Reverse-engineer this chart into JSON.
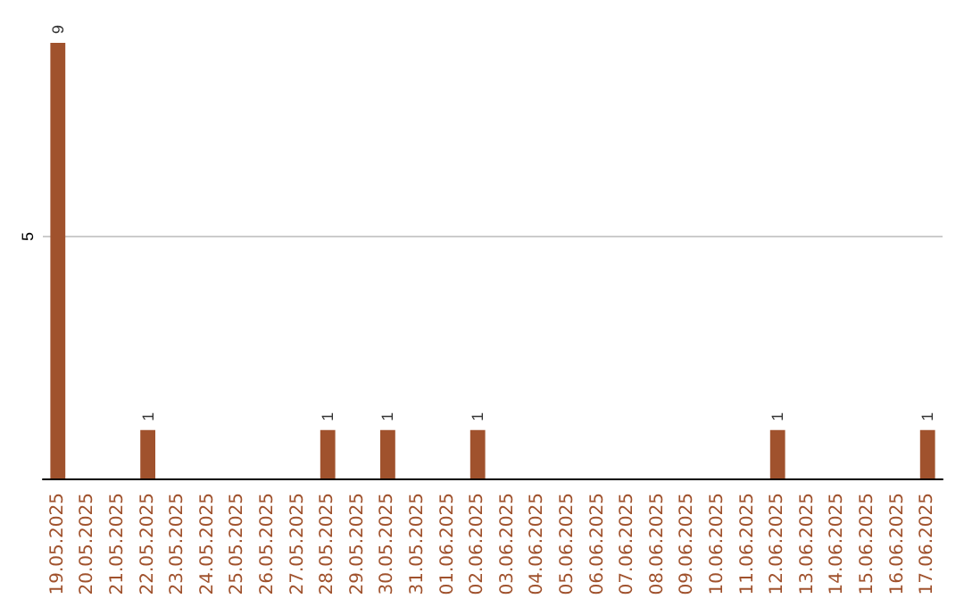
{
  "chart_data": {
    "type": "bar",
    "categories": [
      "19.05.2025",
      "20.05.2025",
      "21.05.2025",
      "22.05.2025",
      "23.05.2025",
      "24.05.2025",
      "25.05.2025",
      "26.05.2025",
      "27.05.2025",
      "28.05.2025",
      "29.05.2025",
      "30.05.2025",
      "31.05.2025",
      "01.06.2025",
      "02.06.2025",
      "03.06.2025",
      "04.06.2025",
      "05.06.2025",
      "06.06.2025",
      "07.06.2025",
      "08.06.2025",
      "09.06.2025",
      "10.06.2025",
      "11.06.2025",
      "12.06.2025",
      "13.06.2025",
      "14.06.2025",
      "15.06.2025",
      "16.06.2025",
      "17.06.2025"
    ],
    "values": [
      9,
      0,
      0,
      1,
      0,
      0,
      0,
      0,
      0,
      1,
      0,
      1,
      0,
      0,
      1,
      0,
      0,
      0,
      0,
      0,
      0,
      0,
      0,
      0,
      1,
      0,
      0,
      0,
      0,
      1
    ],
    "value_labels": [
      "9",
      null,
      null,
      "1",
      null,
      null,
      null,
      null,
      null,
      "1",
      null,
      "1",
      null,
      null,
      "1",
      null,
      null,
      null,
      null,
      null,
      null,
      null,
      null,
      null,
      "1",
      null,
      null,
      null,
      null,
      "1"
    ],
    "color": "#a0522d",
    "ylim": [
      0,
      9
    ],
    "yticks": [
      5
    ],
    "grid": "y"
  }
}
